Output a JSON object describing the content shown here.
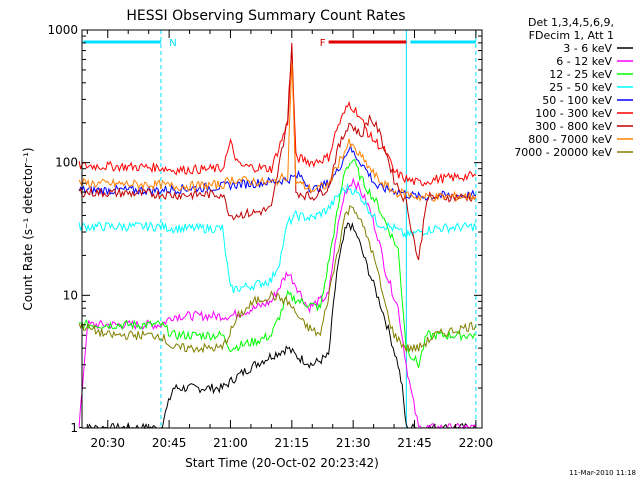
{
  "chart_data": {
    "type": "line",
    "title": "HESSI Observing Summary Count Rates",
    "xlabel": "Start Time (20-Oct-02 20:23:42)",
    "ylabel": "Count Rate (s⁻¹ detector⁻¹)",
    "yscale": "log",
    "ylim": [
      1,
      1000
    ],
    "xlim": [
      "20:23:42",
      "22:01:30"
    ],
    "x_ticks": [
      "20:30",
      "20:45",
      "21:00",
      "21:15",
      "21:30",
      "21:45",
      "22:00"
    ],
    "y_ticks": [
      "1",
      "10",
      "100",
      "1000"
    ],
    "grid": false,
    "legend_position": "right",
    "legend_header": [
      "Det 1,3,4,5,6,9,",
      "FDecim 1, Att 1"
    ],
    "annotations": [
      {
        "label": "N",
        "color": "#00e0ff",
        "from": "20:24",
        "to": "20:43"
      },
      {
        "label": "F",
        "color": "#e00000",
        "from": "21:24",
        "to": "21:43"
      },
      {
        "label": "",
        "color": "#00e0ff",
        "from": "21:44",
        "to": "22:00"
      }
    ],
    "markers": [
      {
        "time": "20:43",
        "color": "#00e0ff",
        "style": "dashed"
      },
      {
        "time": "21:43",
        "color": "#00e0ff",
        "style": "solid"
      },
      {
        "time": "22:00",
        "color": "#00e0ff",
        "style": "dashed"
      }
    ],
    "series": [
      {
        "name": "3 - 6 keV",
        "color": "#000000",
        "points": [
          [
            "20:23",
            1
          ],
          [
            "20:43",
            1
          ],
          [
            "20:46",
            2
          ],
          [
            "20:58",
            2
          ],
          [
            "21:02",
            2.5
          ],
          [
            "21:06",
            3
          ],
          [
            "21:10",
            3.5
          ],
          [
            "21:14",
            4
          ],
          [
            "21:16",
            3.5
          ],
          [
            "21:20",
            3
          ],
          [
            "21:24",
            3.5
          ],
          [
            "21:26",
            15
          ],
          [
            "21:28",
            30
          ],
          [
            "21:29",
            35
          ],
          [
            "21:31",
            28
          ],
          [
            "21:33",
            18
          ],
          [
            "21:35",
            12
          ],
          [
            "21:37",
            8
          ],
          [
            "21:39",
            5
          ],
          [
            "21:41",
            3
          ],
          [
            "21:42",
            2
          ],
          [
            "21:43",
            1
          ],
          [
            "21:45",
            1
          ],
          [
            "22:00",
            1
          ]
        ]
      },
      {
        "name": "6 - 12 keV",
        "color": "#ff00ff",
        "points": [
          [
            "20:23",
            1
          ],
          [
            "20:25",
            6
          ],
          [
            "20:43",
            6
          ],
          [
            "20:46",
            7
          ],
          [
            "20:58",
            7
          ],
          [
            "21:00",
            7
          ],
          [
            "21:06",
            8
          ],
          [
            "21:10",
            9
          ],
          [
            "21:14",
            15
          ],
          [
            "21:16",
            12
          ],
          [
            "21:19",
            8
          ],
          [
            "21:24",
            10
          ],
          [
            "21:26",
            30
          ],
          [
            "21:28",
            60
          ],
          [
            "21:30",
            75
          ],
          [
            "21:32",
            60
          ],
          [
            "21:34",
            45
          ],
          [
            "21:36",
            28
          ],
          [
            "21:38",
            15
          ],
          [
            "21:41",
            8
          ],
          [
            "21:43",
            3
          ],
          [
            "21:44",
            2
          ],
          [
            "21:46",
            1
          ],
          [
            "22:00",
            1
          ]
        ]
      },
      {
        "name": "12 - 25 keV",
        "color": "#00ff00",
        "points": [
          [
            "20:23",
            6
          ],
          [
            "20:43",
            6
          ],
          [
            "20:46",
            5
          ],
          [
            "20:58",
            5
          ],
          [
            "21:00",
            4
          ],
          [
            "21:06",
            4.5
          ],
          [
            "21:10",
            5
          ],
          [
            "21:12",
            7
          ],
          [
            "21:14",
            10
          ],
          [
            "21:17",
            9
          ],
          [
            "21:22",
            8
          ],
          [
            "21:26",
            40
          ],
          [
            "21:28",
            90
          ],
          [
            "21:30",
            105
          ],
          [
            "21:32",
            75
          ],
          [
            "21:34",
            60
          ],
          [
            "21:36",
            48
          ],
          [
            "21:38",
            35
          ],
          [
            "21:41",
            22
          ],
          [
            "21:43",
            4
          ],
          [
            "21:46",
            3
          ],
          [
            "21:48",
            5
          ],
          [
            "22:00",
            5
          ]
        ]
      },
      {
        "name": "25 - 50 keV",
        "color": "#00ffff",
        "points": [
          [
            "20:23",
            33
          ],
          [
            "20:43",
            33
          ],
          [
            "20:46",
            32
          ],
          [
            "20:58",
            32
          ],
          [
            "21:00",
            11
          ],
          [
            "21:06",
            12
          ],
          [
            "21:10",
            13
          ],
          [
            "21:12",
            18
          ],
          [
            "21:14",
            35
          ],
          [
            "21:16",
            40
          ],
          [
            "21:20",
            38
          ],
          [
            "21:24",
            45
          ],
          [
            "21:27",
            60
          ],
          [
            "21:29",
            65
          ],
          [
            "21:32",
            55
          ],
          [
            "21:36",
            35
          ],
          [
            "21:40",
            32
          ],
          [
            "21:43",
            28
          ],
          [
            "21:46",
            30
          ],
          [
            "21:50",
            32
          ],
          [
            "22:00",
            33
          ]
        ]
      },
      {
        "name": "50 - 100 keV",
        "color": "#0000ff",
        "points": [
          [
            "20:23",
            62
          ],
          [
            "20:43",
            62
          ],
          [
            "20:46",
            63
          ],
          [
            "20:58",
            66
          ],
          [
            "21:00",
            68
          ],
          [
            "21:06",
            70
          ],
          [
            "21:10",
            72
          ],
          [
            "21:14",
            75
          ],
          [
            "21:17",
            80
          ],
          [
            "21:20",
            62
          ],
          [
            "21:24",
            70
          ],
          [
            "21:26",
            85
          ],
          [
            "21:29",
            130
          ],
          [
            "21:32",
            100
          ],
          [
            "21:36",
            65
          ],
          [
            "21:40",
            62
          ],
          [
            "21:43",
            58
          ],
          [
            "21:46",
            55
          ],
          [
            "21:50",
            56
          ],
          [
            "22:00",
            57
          ]
        ]
      },
      {
        "name": "100 - 300 keV",
        "color": "#ff0000",
        "points": [
          [
            "20:23",
            95
          ],
          [
            "20:43",
            92
          ],
          [
            "20:46",
            88
          ],
          [
            "20:58",
            90
          ],
          [
            "21:00",
            140
          ],
          [
            "21:02",
            95
          ],
          [
            "21:06",
            92
          ],
          [
            "21:10",
            90
          ],
          [
            "21:14",
            200
          ],
          [
            "21:15",
            750
          ],
          [
            "21:16",
            110
          ],
          [
            "21:20",
            100
          ],
          [
            "21:24",
            110
          ],
          [
            "21:26",
            180
          ],
          [
            "21:29",
            280
          ],
          [
            "21:31",
            240
          ],
          [
            "21:34",
            160
          ],
          [
            "21:38",
            120
          ],
          [
            "21:40",
            85
          ],
          [
            "21:43",
            75
          ],
          [
            "21:46",
            70
          ],
          [
            "21:50",
            75
          ],
          [
            "22:00",
            80
          ]
        ]
      },
      {
        "name": "300 - 800 keV",
        "color": "#c00000",
        "points": [
          [
            "20:23",
            60
          ],
          [
            "20:43",
            58
          ],
          [
            "20:46",
            57
          ],
          [
            "20:58",
            58
          ],
          [
            "21:00",
            40
          ],
          [
            "21:06",
            42
          ],
          [
            "21:10",
            45
          ],
          [
            "21:14",
            220
          ],
          [
            "21:15",
            800
          ],
          [
            "21:16",
            60
          ],
          [
            "21:20",
            55
          ],
          [
            "21:24",
            65
          ],
          [
            "21:26",
            120
          ],
          [
            "21:29",
            200
          ],
          [
            "21:32",
            160
          ],
          [
            "21:34",
            220
          ],
          [
            "21:36",
            180
          ],
          [
            "21:38",
            120
          ],
          [
            "21:40",
            75
          ],
          [
            "21:43",
            50
          ],
          [
            "21:45",
            25
          ],
          [
            "21:46",
            18
          ],
          [
            "21:48",
            55
          ],
          [
            "22:00",
            55
          ]
        ]
      },
      {
        "name": "800 - 7000 keV",
        "color": "#ff8000",
        "points": [
          [
            "20:23",
            70
          ],
          [
            "20:43",
            68
          ],
          [
            "20:46",
            66
          ],
          [
            "20:58",
            68
          ],
          [
            "21:00",
            75
          ],
          [
            "21:06",
            72
          ],
          [
            "21:10",
            70
          ],
          [
            "21:14",
            80
          ],
          [
            "21:15",
            600
          ],
          [
            "21:16",
            72
          ],
          [
            "21:20",
            62
          ],
          [
            "21:24",
            68
          ],
          [
            "21:26",
            95
          ],
          [
            "21:29",
            140
          ],
          [
            "21:32",
            110
          ],
          [
            "21:36",
            75
          ],
          [
            "21:40",
            60
          ],
          [
            "21:43",
            58
          ],
          [
            "21:46",
            55
          ],
          [
            "21:50",
            55
          ],
          [
            "22:00",
            56
          ]
        ]
      },
      {
        "name": "7000 - 20000 keV",
        "color": "#808000",
        "points": [
          [
            "20:23",
            6
          ],
          [
            "20:30",
            5
          ],
          [
            "20:43",
            5
          ],
          [
            "20:46",
            4
          ],
          [
            "20:58",
            4
          ],
          [
            "21:02",
            7
          ],
          [
            "21:06",
            9
          ],
          [
            "21:10",
            10
          ],
          [
            "21:14",
            9
          ],
          [
            "21:18",
            6
          ],
          [
            "21:22",
            5
          ],
          [
            "21:26",
            20
          ],
          [
            "21:28",
            40
          ],
          [
            "21:30",
            48
          ],
          [
            "21:32",
            35
          ],
          [
            "21:34",
            25
          ],
          [
            "21:36",
            15
          ],
          [
            "21:38",
            8
          ],
          [
            "21:40",
            5
          ],
          [
            "21:43",
            4
          ],
          [
            "21:46",
            4
          ],
          [
            "21:50",
            5
          ],
          [
            "22:00",
            6
          ]
        ]
      }
    ],
    "footer": "11-Mar-2010 11:18"
  }
}
